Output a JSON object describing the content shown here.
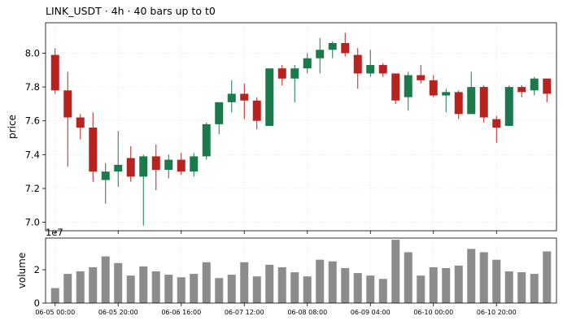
{
  "chart_data": {
    "type": "candlestick",
    "title": "LINK_USDT  ·  4h  ·  40 bars up to t0",
    "price_panel": {
      "ylabel": "price",
      "ylim": [
        6.95,
        8.18
      ],
      "yticks": [
        "7.0",
        "7.2",
        "7.4",
        "7.6",
        "7.8",
        "8.0"
      ],
      "ytick_values": [
        7.0,
        7.2,
        7.4,
        7.6,
        7.8,
        8.0
      ],
      "grid": true
    },
    "volume_panel": {
      "ylabel": "volume",
      "offset_text": "1e7",
      "ylim": [
        0,
        3.9
      ],
      "yticks": [
        "0",
        "2"
      ],
      "ytick_values": [
        0,
        2
      ],
      "bar_color": "#8c8c8c"
    },
    "x_tick_labels": [
      "06-05 00:00",
      "06-05 20:00",
      "06-06 16:00",
      "06-07 12:00",
      "06-08 08:00",
      "06-09 04:00",
      "06-10 00:00",
      "06-10 20:00"
    ],
    "x_tick_indices": [
      0,
      5,
      10,
      15,
      20,
      25,
      30,
      35
    ],
    "colors": {
      "up": "#1a7a4c",
      "down": "#b8231f"
    },
    "candles": [
      {
        "o": 7.99,
        "h": 8.03,
        "l": 7.76,
        "c": 7.78,
        "v": 0.9
      },
      {
        "o": 7.78,
        "h": 7.89,
        "l": 7.33,
        "c": 7.62,
        "v": 1.75
      },
      {
        "o": 7.62,
        "h": 7.64,
        "l": 7.49,
        "c": 7.56,
        "v": 1.9
      },
      {
        "o": 7.56,
        "h": 7.65,
        "l": 7.24,
        "c": 7.3,
        "v": 2.15
      },
      {
        "o": 7.25,
        "h": 7.35,
        "l": 7.11,
        "c": 7.3,
        "v": 2.8
      },
      {
        "o": 7.3,
        "h": 7.54,
        "l": 7.21,
        "c": 7.34,
        "v": 2.4
      },
      {
        "o": 7.38,
        "h": 7.45,
        "l": 7.24,
        "c": 7.27,
        "v": 1.65
      },
      {
        "o": 7.27,
        "h": 7.4,
        "l": 6.98,
        "c": 7.39,
        "v": 2.2
      },
      {
        "o": 7.39,
        "h": 7.46,
        "l": 7.19,
        "c": 7.31,
        "v": 1.9
      },
      {
        "o": 7.31,
        "h": 7.4,
        "l": 7.26,
        "c": 7.37,
        "v": 1.7
      },
      {
        "o": 7.37,
        "h": 7.41,
        "l": 7.28,
        "c": 7.3,
        "v": 1.55
      },
      {
        "o": 7.3,
        "h": 7.41,
        "l": 7.27,
        "c": 7.39,
        "v": 1.75
      },
      {
        "o": 7.39,
        "h": 7.59,
        "l": 7.37,
        "c": 7.58,
        "v": 2.45
      },
      {
        "o": 7.58,
        "h": 7.71,
        "l": 7.52,
        "c": 7.71,
        "v": 1.5
      },
      {
        "o": 7.71,
        "h": 7.84,
        "l": 7.65,
        "c": 7.76,
        "v": 1.7
      },
      {
        "o": 7.76,
        "h": 7.82,
        "l": 7.61,
        "c": 7.72,
        "v": 2.45
      },
      {
        "o": 7.72,
        "h": 7.74,
        "l": 7.55,
        "c": 7.6,
        "v": 1.6
      },
      {
        "o": 7.57,
        "h": 7.91,
        "l": 7.57,
        "c": 7.91,
        "v": 2.3
      },
      {
        "o": 7.91,
        "h": 7.93,
        "l": 7.81,
        "c": 7.85,
        "v": 2.15
      },
      {
        "o": 7.85,
        "h": 7.93,
        "l": 7.71,
        "c": 7.91,
        "v": 1.85
      },
      {
        "o": 7.91,
        "h": 8.0,
        "l": 7.88,
        "c": 7.97,
        "v": 1.6
      },
      {
        "o": 7.97,
        "h": 8.09,
        "l": 7.88,
        "c": 8.02,
        "v": 2.6
      },
      {
        "o": 8.02,
        "h": 8.07,
        "l": 7.97,
        "c": 8.06,
        "v": 2.5
      },
      {
        "o": 8.06,
        "h": 8.12,
        "l": 7.98,
        "c": 8.0,
        "v": 2.1
      },
      {
        "o": 7.99,
        "h": 8.03,
        "l": 7.79,
        "c": 7.88,
        "v": 1.8
      },
      {
        "o": 7.88,
        "h": 8.02,
        "l": 7.86,
        "c": 7.93,
        "v": 1.65
      },
      {
        "o": 7.93,
        "h": 7.94,
        "l": 7.86,
        "c": 7.88,
        "v": 1.45
      },
      {
        "o": 7.88,
        "h": 7.88,
        "l": 7.7,
        "c": 7.72,
        "v": 3.8
      },
      {
        "o": 7.74,
        "h": 7.89,
        "l": 7.66,
        "c": 7.87,
        "v": 3.05
      },
      {
        "o": 7.87,
        "h": 7.93,
        "l": 7.82,
        "c": 7.84,
        "v": 1.65
      },
      {
        "o": 7.84,
        "h": 7.87,
        "l": 7.74,
        "c": 7.75,
        "v": 2.15
      },
      {
        "o": 7.75,
        "h": 7.79,
        "l": 7.65,
        "c": 7.77,
        "v": 2.1
      },
      {
        "o": 7.77,
        "h": 7.78,
        "l": 7.61,
        "c": 7.64,
        "v": 2.25
      },
      {
        "o": 7.64,
        "h": 7.89,
        "l": 7.64,
        "c": 7.8,
        "v": 3.25
      },
      {
        "o": 7.8,
        "h": 7.81,
        "l": 7.59,
        "c": 7.62,
        "v": 3.05
      },
      {
        "o": 7.61,
        "h": 7.63,
        "l": 7.47,
        "c": 7.56,
        "v": 2.6
      },
      {
        "o": 7.57,
        "h": 7.81,
        "l": 7.57,
        "c": 7.8,
        "v": 1.9
      },
      {
        "o": 7.8,
        "h": 7.81,
        "l": 7.74,
        "c": 7.77,
        "v": 1.85
      },
      {
        "o": 7.78,
        "h": 7.86,
        "l": 7.75,
        "c": 7.85,
        "v": 1.75
      },
      {
        "o": 7.85,
        "h": 7.85,
        "l": 7.71,
        "c": 7.76,
        "v": 3.1
      }
    ]
  }
}
